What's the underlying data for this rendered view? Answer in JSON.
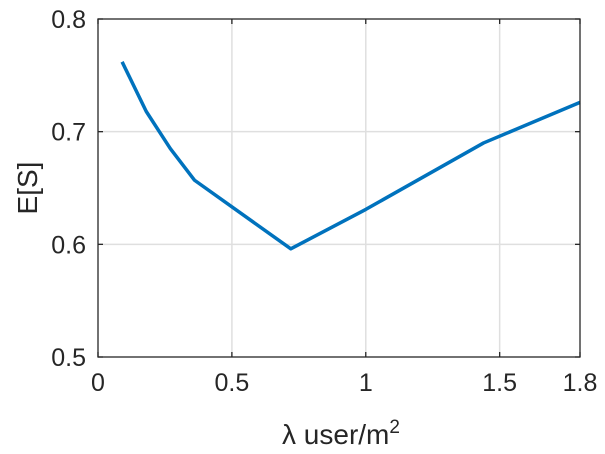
{
  "chart_data": {
    "type": "line",
    "title": "",
    "xlabel": "λ user/m",
    "xlabel_superscript": "2",
    "ylabel": "E[S]",
    "xlim": [
      0,
      1.8
    ],
    "ylim": [
      0.5,
      0.8
    ],
    "xticks": [
      0,
      0.5,
      1,
      1.5,
      1.8
    ],
    "xtick_labels": [
      "0",
      "0.5",
      "1",
      "1.5",
      "1.8"
    ],
    "yticks": [
      0.5,
      0.6,
      0.7,
      0.8
    ],
    "ytick_labels": [
      "0.5",
      "0.6",
      "0.7",
      "0.8"
    ],
    "grid": true,
    "series": [
      {
        "color": "#0072bd",
        "x": [
          0.09,
          0.18,
          0.27,
          0.36,
          0.72,
          1.0,
          1.44,
          1.8
        ],
        "y": [
          0.762,
          0.718,
          0.685,
          0.657,
          0.596,
          0.631,
          0.69,
          0.726
        ]
      }
    ]
  }
}
